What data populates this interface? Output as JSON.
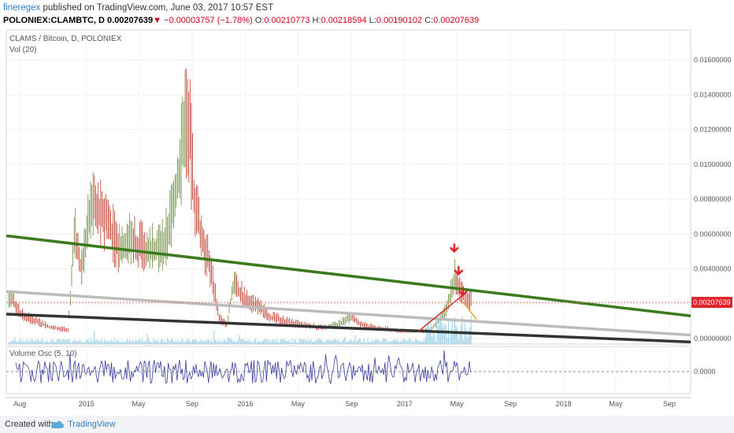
{
  "header": {
    "author": "fineregex",
    "published_text": "published on TradingView.com, June 03, 2017 10:57 EST",
    "symbol": "POLONIEX:CLAMBTC, D",
    "last_price": "0.00207639",
    "change": "−0.00003757 (−1.78%)",
    "open_label": "O:",
    "open": "0.00210773",
    "high_label": "H:",
    "high": "0.00218594",
    "low_label": "L:",
    "low": "0.00190102",
    "close_label": "C:",
    "close": "0.00207639"
  },
  "chart_data": [
    {
      "type": "candlestick",
      "title": "CLAMS / Bitcoin, D, POLONIEX",
      "indicator_label": "Vol (20)",
      "x_tick_labels": [
        "Aug",
        "2015",
        "May",
        "Sep",
        "2016",
        "May",
        "Sep",
        "2017",
        "May",
        "Sep",
        "2018",
        "May",
        "Sep"
      ],
      "y_tick_labels": [
        "0.01600000",
        "0.01400000",
        "0.01200000",
        "0.01000000",
        "0.00800000",
        "0.00600000",
        "0.00400000",
        "0.00200000",
        "0.00000000"
      ],
      "ylim": [
        0,
        0.0175
      ],
      "last_price_label": "0.00207639",
      "last_price": 0.00207639,
      "price_path": {
        "dates": [
          "2014-07-15",
          "2014-08-01",
          "2014-09-15",
          "2014-10-15",
          "2014-11-20",
          "2014-12-05",
          "2014-12-20",
          "2015-01-15",
          "2015-02-15",
          "2015-03-15",
          "2015-04-15",
          "2015-05-15",
          "2015-06-15",
          "2015-07-01",
          "2015-07-20",
          "2015-08-05",
          "2015-08-15",
          "2015-08-25",
          "2015-09-05",
          "2015-09-20",
          "2015-10-15",
          "2015-11-01",
          "2015-11-20",
          "2015-12-05",
          "2016-01-01",
          "2016-02-01",
          "2016-03-01",
          "2016-04-01",
          "2016-05-01",
          "2016-06-01",
          "2016-07-01",
          "2016-08-01",
          "2016-09-01",
          "2016-10-01",
          "2016-11-01",
          "2016-12-01",
          "2017-01-01",
          "2017-02-01",
          "2017-03-01",
          "2017-03-20",
          "2017-04-10",
          "2017-04-25",
          "2017-05-05",
          "2017-05-15",
          "2017-05-25",
          "2017-06-03"
        ],
        "values": [
          0.0022,
          0.0014,
          0.0009,
          0.0006,
          0.0005,
          0.006,
          0.004,
          0.0078,
          0.0068,
          0.0052,
          0.0057,
          0.005,
          0.0052,
          0.0055,
          0.0075,
          0.01,
          0.0125,
          0.012,
          0.0082,
          0.006,
          0.0038,
          0.0012,
          0.0008,
          0.0032,
          0.0022,
          0.0018,
          0.0012,
          0.001,
          0.0008,
          0.0007,
          0.0006,
          0.0008,
          0.0012,
          0.0007,
          0.0006,
          0.0005,
          0.0004,
          0.0004,
          0.0005,
          0.001,
          0.0018,
          0.0035,
          0.003,
          0.0025,
          0.0022,
          0.00207639
        ]
      },
      "trendlines": [
        {
          "color": "#3c7a1e",
          "start": [
            "2014-07-01",
            0.0059
          ],
          "end": [
            "2018-10-20",
            0.0013
          ]
        },
        {
          "color": "#bcbcbc",
          "start": [
            "2014-07-01",
            0.0027
          ],
          "end": [
            "2018-10-20",
            0.0002
          ]
        },
        {
          "color": "#333333",
          "start": [
            "2014-07-01",
            0.0014
          ],
          "end": [
            "2018-10-20",
            -0.0002
          ]
        },
        {
          "color": "#e0242a",
          "start": [
            "2017-02-01",
            0.0004
          ],
          "end": [
            "2017-05-25",
            0.0027
          ]
        },
        {
          "color": "#f0a020",
          "start": [
            "2017-05-15",
            0.0021
          ],
          "end": [
            "2017-06-15",
            0.0011
          ]
        }
      ],
      "arrow_markers": [
        {
          "color": "#e0242a",
          "date": "2017-04-25",
          "value": 0.005
        },
        {
          "color": "#e0242a",
          "date": "2017-05-05",
          "value": 0.0037
        },
        {
          "color": "#e0242a",
          "date": "2017-05-15",
          "value": 0.0025
        }
      ],
      "colors": {
        "up": "#6b8a3e",
        "down": "#c0392b",
        "volume": "#8fcbe4",
        "last_price_line": "#e07070"
      },
      "grid": true
    },
    {
      "type": "line",
      "title": "Volume Osc (5, 10)",
      "y_tick_labels": [
        "0.0000"
      ],
      "series_color": "#3b3b9e",
      "reference_value": 0
    }
  ],
  "footer": {
    "created_with": "Created with",
    "brand": "TradingView"
  }
}
